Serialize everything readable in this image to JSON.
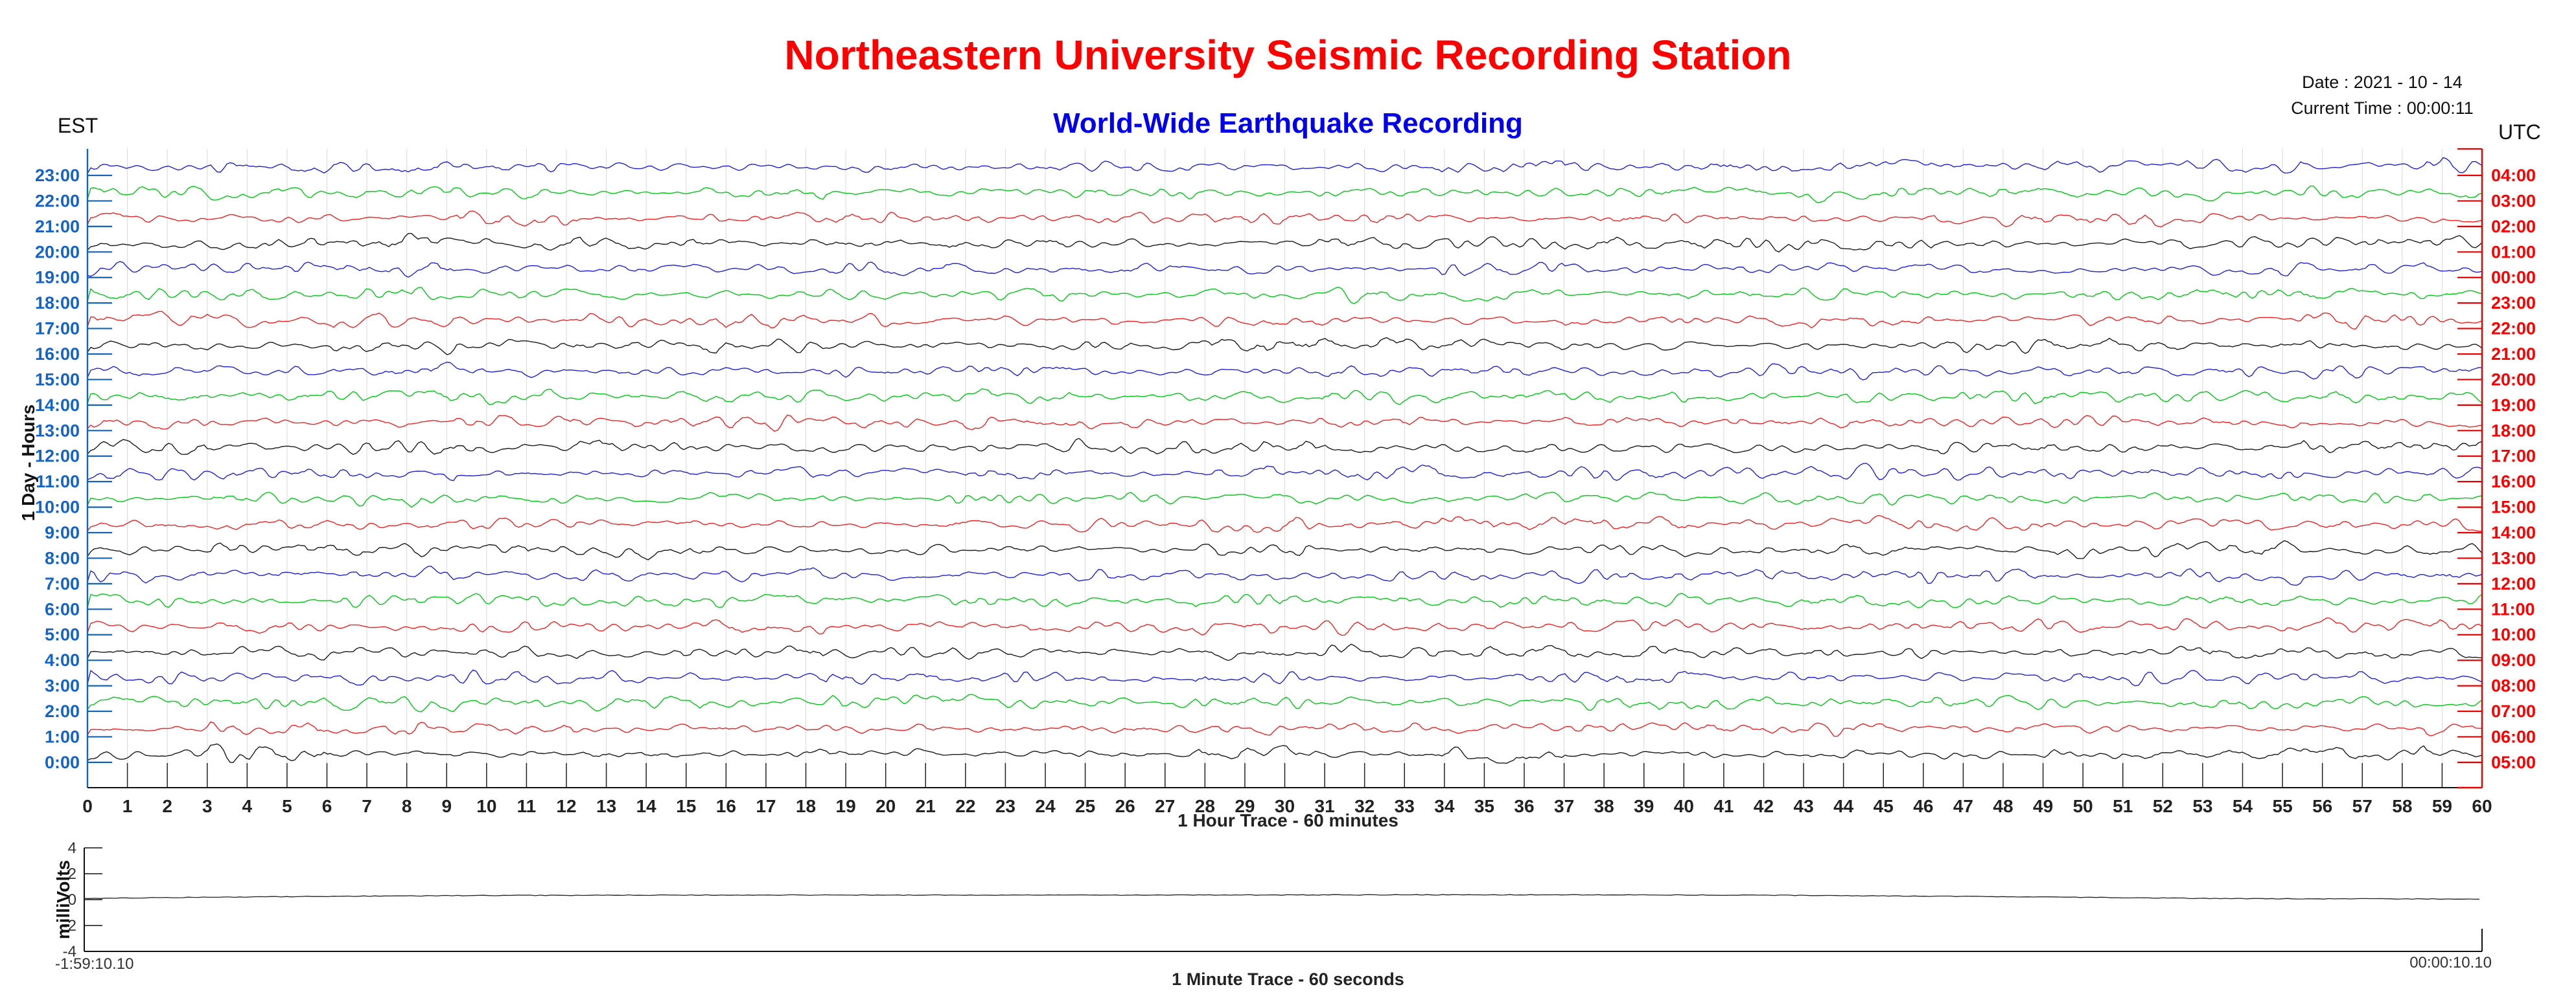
{
  "header": {
    "title": "Northeastern University Seismic Recording Station",
    "subtitle": "World-Wide Earthquake Recording",
    "date_line": "Date : 2021 - 10 - 14",
    "time_line": "Current Time : 00:00:11"
  },
  "main_chart": {
    "left_axis_header": "EST",
    "right_axis_header": "UTC",
    "ylabel": "1 Day - Hours",
    "xlabel": "1 Hour Trace - 60 minutes",
    "x_ticks": [
      "0",
      "1",
      "2",
      "3",
      "4",
      "5",
      "6",
      "7",
      "8",
      "9",
      "10",
      "11",
      "12",
      "13",
      "14",
      "15",
      "16",
      "17",
      "18",
      "19",
      "20",
      "21",
      "22",
      "23",
      "24",
      "25",
      "26",
      "27",
      "28",
      "29",
      "30",
      "31",
      "32",
      "33",
      "34",
      "35",
      "36",
      "37",
      "38",
      "39",
      "40",
      "41",
      "42",
      "43",
      "44",
      "45",
      "46",
      "47",
      "48",
      "49",
      "50",
      "51",
      "52",
      "53",
      "54",
      "55",
      "56",
      "57",
      "58",
      "59",
      "60"
    ]
  },
  "mini_chart": {
    "ylabel": "milliVolts",
    "y_ticks": [
      4,
      2,
      0,
      -2,
      -4
    ],
    "xlabel": "1 Minute Trace  - 60 seconds",
    "start_time": "-1:59:10.10",
    "end_time": "00:00:10.10"
  },
  "colors": {
    "title_red": "#ff0000",
    "subtitle_blue": "#0000ee",
    "left_axis": "#1464b4",
    "right_axis": "#e80000",
    "grid": "#d9d9d9",
    "traces": {
      "blue": "#2020d8",
      "green": "#00c814",
      "red": "#ee2222",
      "black": "#1a1a1a"
    }
  },
  "chart_data": {
    "type": "line",
    "subtype": "helicorder-seismogram",
    "main": {
      "title": "World-Wide Earthquake Recording",
      "xlabel": "1 Hour Trace - 60 minutes",
      "ylabel": "1 Day - Hours",
      "x_range_minutes": [
        0,
        60
      ],
      "x_tick_step": 1,
      "grid": "vertical gridline each minute",
      "signal_description": "24 stacked one-hour traces of continuous background seismic noise, no large events; amplitude roughly +/-0.15 of the row spacing around each hourly baseline",
      "traces": [
        {
          "est": "23:00",
          "utc": "04:00",
          "color": "blue"
        },
        {
          "est": "22:00",
          "utc": "03:00",
          "color": "green"
        },
        {
          "est": "21:00",
          "utc": "02:00",
          "color": "red"
        },
        {
          "est": "20:00",
          "utc": "01:00",
          "color": "black"
        },
        {
          "est": "19:00",
          "utc": "00:00",
          "color": "blue"
        },
        {
          "est": "18:00",
          "utc": "23:00",
          "color": "green"
        },
        {
          "est": "17:00",
          "utc": "22:00",
          "color": "red"
        },
        {
          "est": "16:00",
          "utc": "21:00",
          "color": "black"
        },
        {
          "est": "15:00",
          "utc": "20:00",
          "color": "blue"
        },
        {
          "est": "14:00",
          "utc": "19:00",
          "color": "green"
        },
        {
          "est": "13:00",
          "utc": "18:00",
          "color": "red"
        },
        {
          "est": "12:00",
          "utc": "17:00",
          "color": "black"
        },
        {
          "est": "11:00",
          "utc": "16:00",
          "color": "blue"
        },
        {
          "est": "10:00",
          "utc": "15:00",
          "color": "green"
        },
        {
          "est": "9:00",
          "utc": "14:00",
          "color": "red"
        },
        {
          "est": "8:00",
          "utc": "13:00",
          "color": "black"
        },
        {
          "est": "7:00",
          "utc": "12:00",
          "color": "blue"
        },
        {
          "est": "6:00",
          "utc": "11:00",
          "color": "green"
        },
        {
          "est": "5:00",
          "utc": "10:00",
          "color": "red"
        },
        {
          "est": "4:00",
          "utc": "09:00",
          "color": "black"
        },
        {
          "est": "3:00",
          "utc": "08:00",
          "color": "blue"
        },
        {
          "est": "2:00",
          "utc": "07:00",
          "color": "green"
        },
        {
          "est": "1:00",
          "utc": "06:00",
          "color": "red"
        },
        {
          "est": "0:00",
          "utc": "05:00",
          "color": "black"
        }
      ]
    },
    "mini": {
      "xlabel": "1 Minute Trace  - 60 seconds",
      "ylabel": "milliVolts",
      "ylim": [
        -4,
        4
      ],
      "y_ticks": [
        4,
        2,
        0,
        -2,
        -4
      ],
      "window_labels": [
        "-1:59:10.10",
        "00:00:10.10"
      ],
      "approx_values_mV": [
        0.1,
        0.2,
        0.3,
        0.4,
        0.45,
        0.4,
        0.35,
        0.4,
        0.45,
        0.4
      ]
    }
  }
}
